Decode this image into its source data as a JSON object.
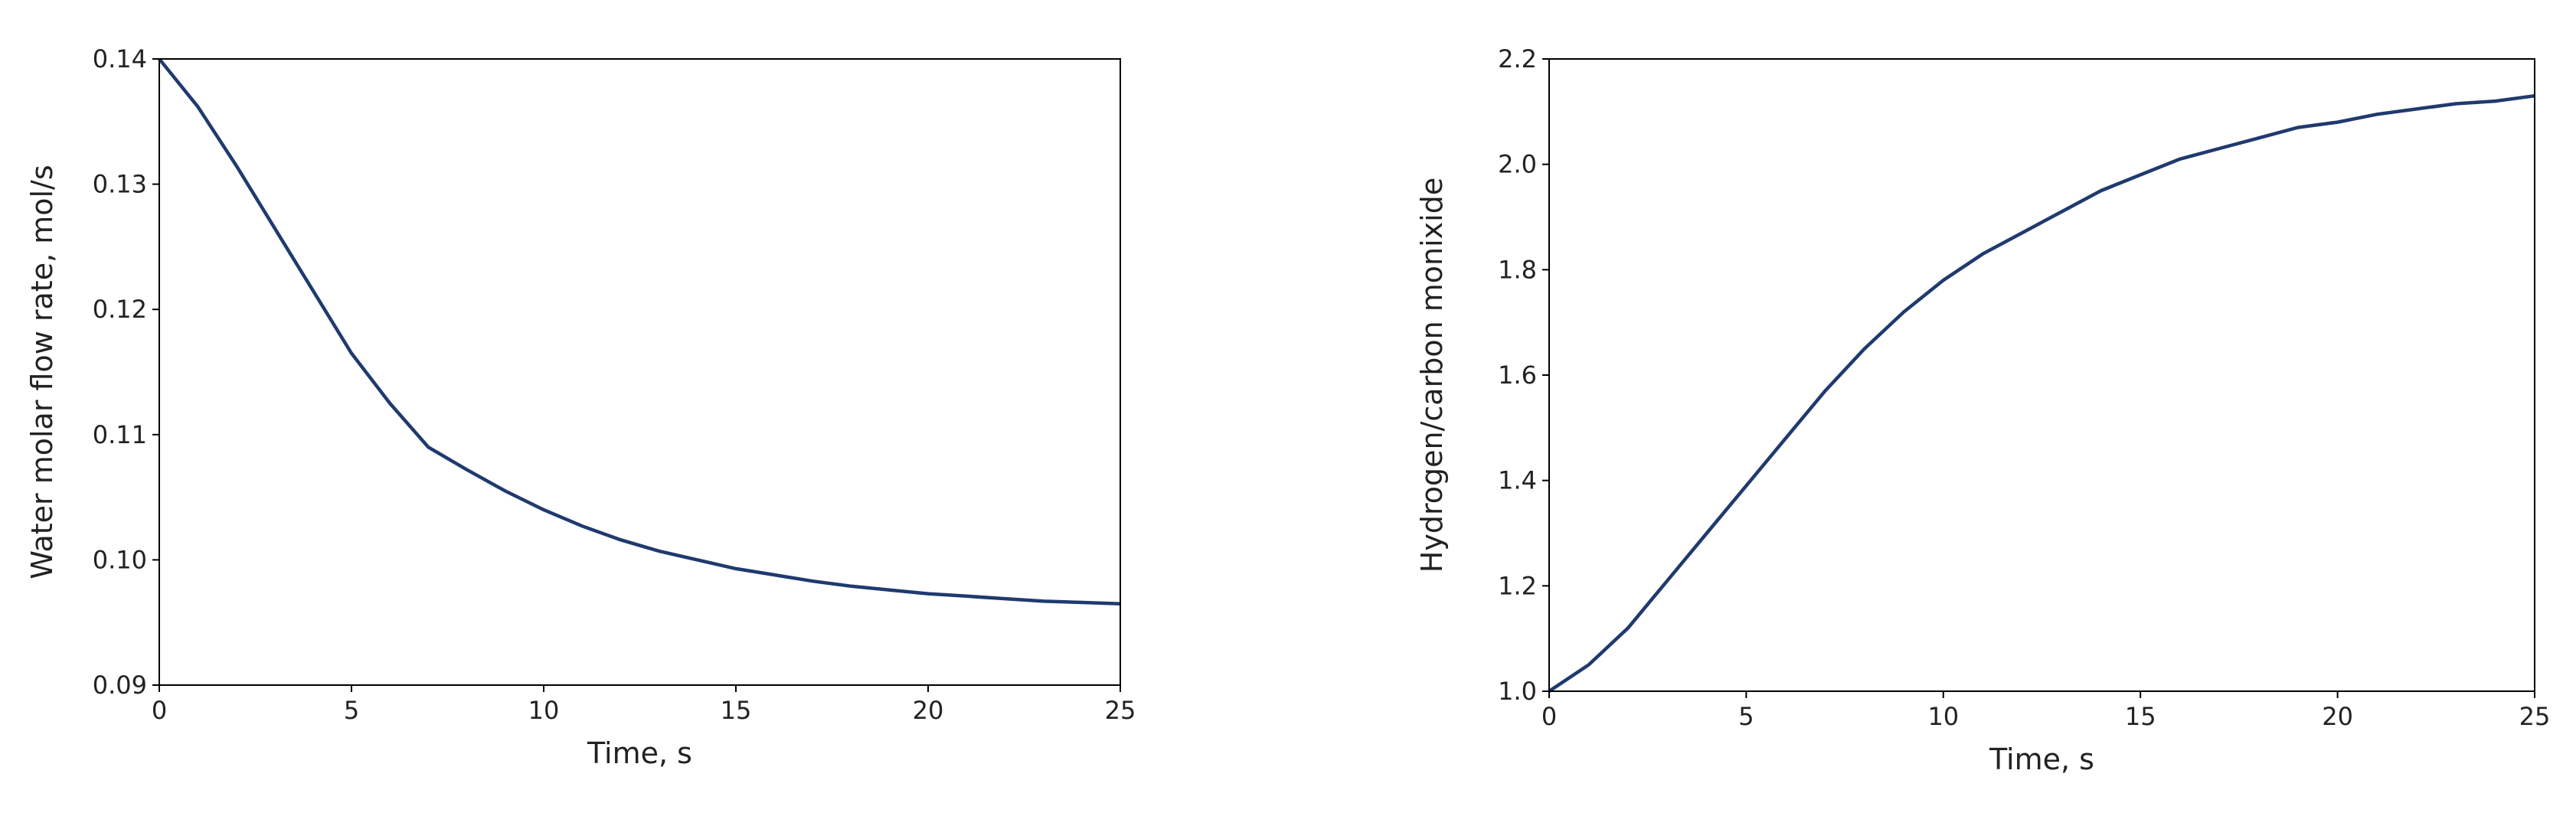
{
  "chart_data": [
    {
      "type": "line",
      "xlabel": "Time, s",
      "ylabel": "Water molar flow rate, mol/s",
      "color": "#1f3a6e",
      "x": [
        0,
        1,
        2,
        3,
        4,
        5,
        6,
        7,
        8,
        9,
        10,
        11,
        12,
        13,
        14,
        15,
        16,
        17,
        18,
        19,
        20,
        21,
        22,
        23,
        24,
        25
      ],
      "values": [
        0.14,
        0.1362,
        0.1315,
        0.1265,
        0.1215,
        0.1165,
        0.1125,
        0.109,
        0.1072,
        0.1055,
        0.104,
        0.1027,
        0.1016,
        0.1007,
        0.1,
        0.0993,
        0.0988,
        0.0983,
        0.0979,
        0.0976,
        0.0973,
        0.0971,
        0.0969,
        0.0967,
        0.0966,
        0.0965
      ],
      "xlim": [
        0,
        25
      ],
      "xticks": [
        0,
        5,
        10,
        15,
        20,
        25
      ],
      "ylim": [
        0.09,
        0.14
      ],
      "yticks": [
        0.09,
        {
          "value": 0.1,
          "label": "0.10"
        },
        0.11,
        0.12,
        0.13,
        0.14
      ]
    },
    {
      "type": "line",
      "xlabel": "Time, s",
      "ylabel": "Hydrogen/carbon monixide",
      "color": "#1f3a6e",
      "x": [
        0,
        1,
        2,
        3,
        4,
        5,
        6,
        7,
        8,
        9,
        10,
        11,
        12,
        13,
        14,
        15,
        16,
        17,
        18,
        19,
        20,
        21,
        22,
        23,
        24,
        25
      ],
      "values": [
        1.0,
        1.05,
        1.12,
        1.21,
        1.3,
        1.39,
        1.48,
        1.57,
        1.65,
        1.72,
        1.78,
        1.83,
        1.87,
        1.91,
        1.95,
        1.98,
        2.01,
        2.03,
        2.05,
        2.07,
        2.08,
        2.095,
        2.105,
        2.115,
        2.12,
        2.13
      ],
      "xlim": [
        0,
        25
      ],
      "xticks": [
        0,
        5,
        10,
        15,
        20,
        25
      ],
      "ylim": [
        1.0,
        2.2
      ],
      "yticks": [
        {
          "value": 1.0,
          "label": "1.0"
        },
        1.2,
        1.4,
        1.6,
        1.8,
        {
          "value": 2.0,
          "label": "2.0"
        },
        2.2
      ]
    }
  ]
}
